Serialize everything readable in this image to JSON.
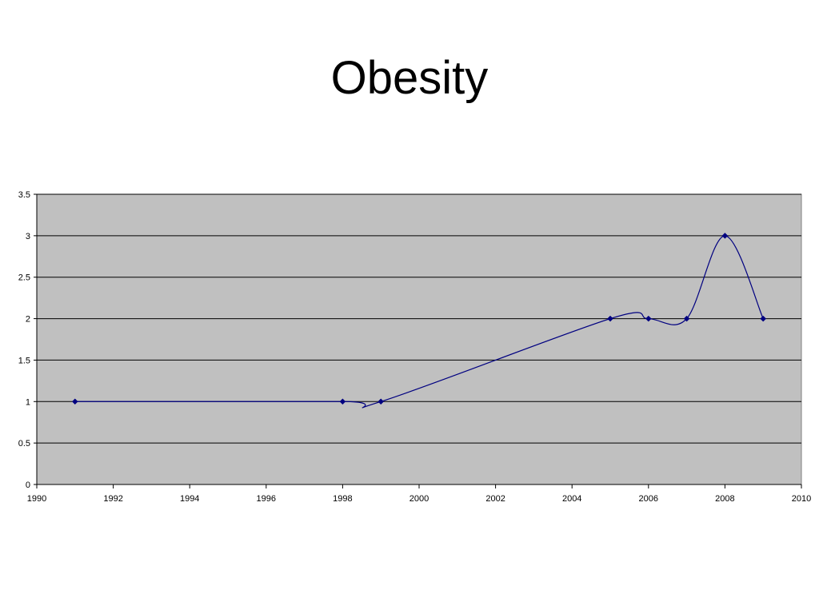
{
  "slide": {
    "title": "Obesity"
  },
  "chart_data": {
    "type": "line",
    "title": "Obesity",
    "xlabel": "",
    "ylabel": "",
    "xlim": [
      1990,
      2010
    ],
    "ylim": [
      0,
      3.5
    ],
    "x_ticks": [
      1990,
      1992,
      1994,
      1996,
      1998,
      2000,
      2002,
      2004,
      2006,
      2008,
      2010
    ],
    "y_ticks": [
      0,
      0.5,
      1,
      1.5,
      2,
      2.5,
      3,
      3.5
    ],
    "y_tick_labels": [
      "0",
      "0.5",
      "1",
      "1.5",
      "2",
      "2.5",
      "3",
      "3.5"
    ],
    "grid": "horizontal",
    "smoothed": true,
    "marker": "diamond",
    "colors": {
      "plot_background": "#C0C0C0",
      "series": "#000080",
      "gridline": "#000000"
    },
    "series": [
      {
        "x": [
          1991,
          1998,
          1999,
          2005,
          2006,
          2007,
          2008,
          2009
        ],
        "values": [
          1,
          1,
          1,
          2,
          2,
          2,
          3,
          2
        ]
      }
    ]
  }
}
